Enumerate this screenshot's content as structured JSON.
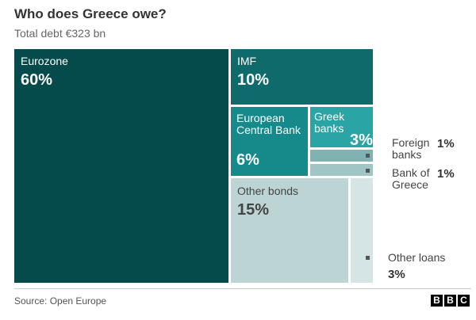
{
  "chart_data": {
    "type": "treemap",
    "title": "Who does Greece owe?",
    "subtitle": "Total debt €323 bn",
    "categories": [
      "Eurozone",
      "IMF",
      "European Central Bank",
      "Greek banks",
      "Foreign banks",
      "Bank of Greece",
      "Other bonds",
      "Other loans"
    ],
    "values": [
      60,
      10,
      6,
      3,
      1,
      1,
      15,
      3
    ],
    "value_labels": [
      "60%",
      "10%",
      "6%",
      "3%",
      "1%",
      "1%",
      "15%",
      "3%"
    ],
    "colors": [
      "#064b4b",
      "#0f6b6b",
      "#168a8a",
      "#2aa4a4",
      "#80b2b2",
      "#9fc5c5",
      "#bcd4d4",
      "#d5e4e4"
    ],
    "source": "Source: Open Europe",
    "logo": [
      "B",
      "B",
      "C"
    ]
  }
}
